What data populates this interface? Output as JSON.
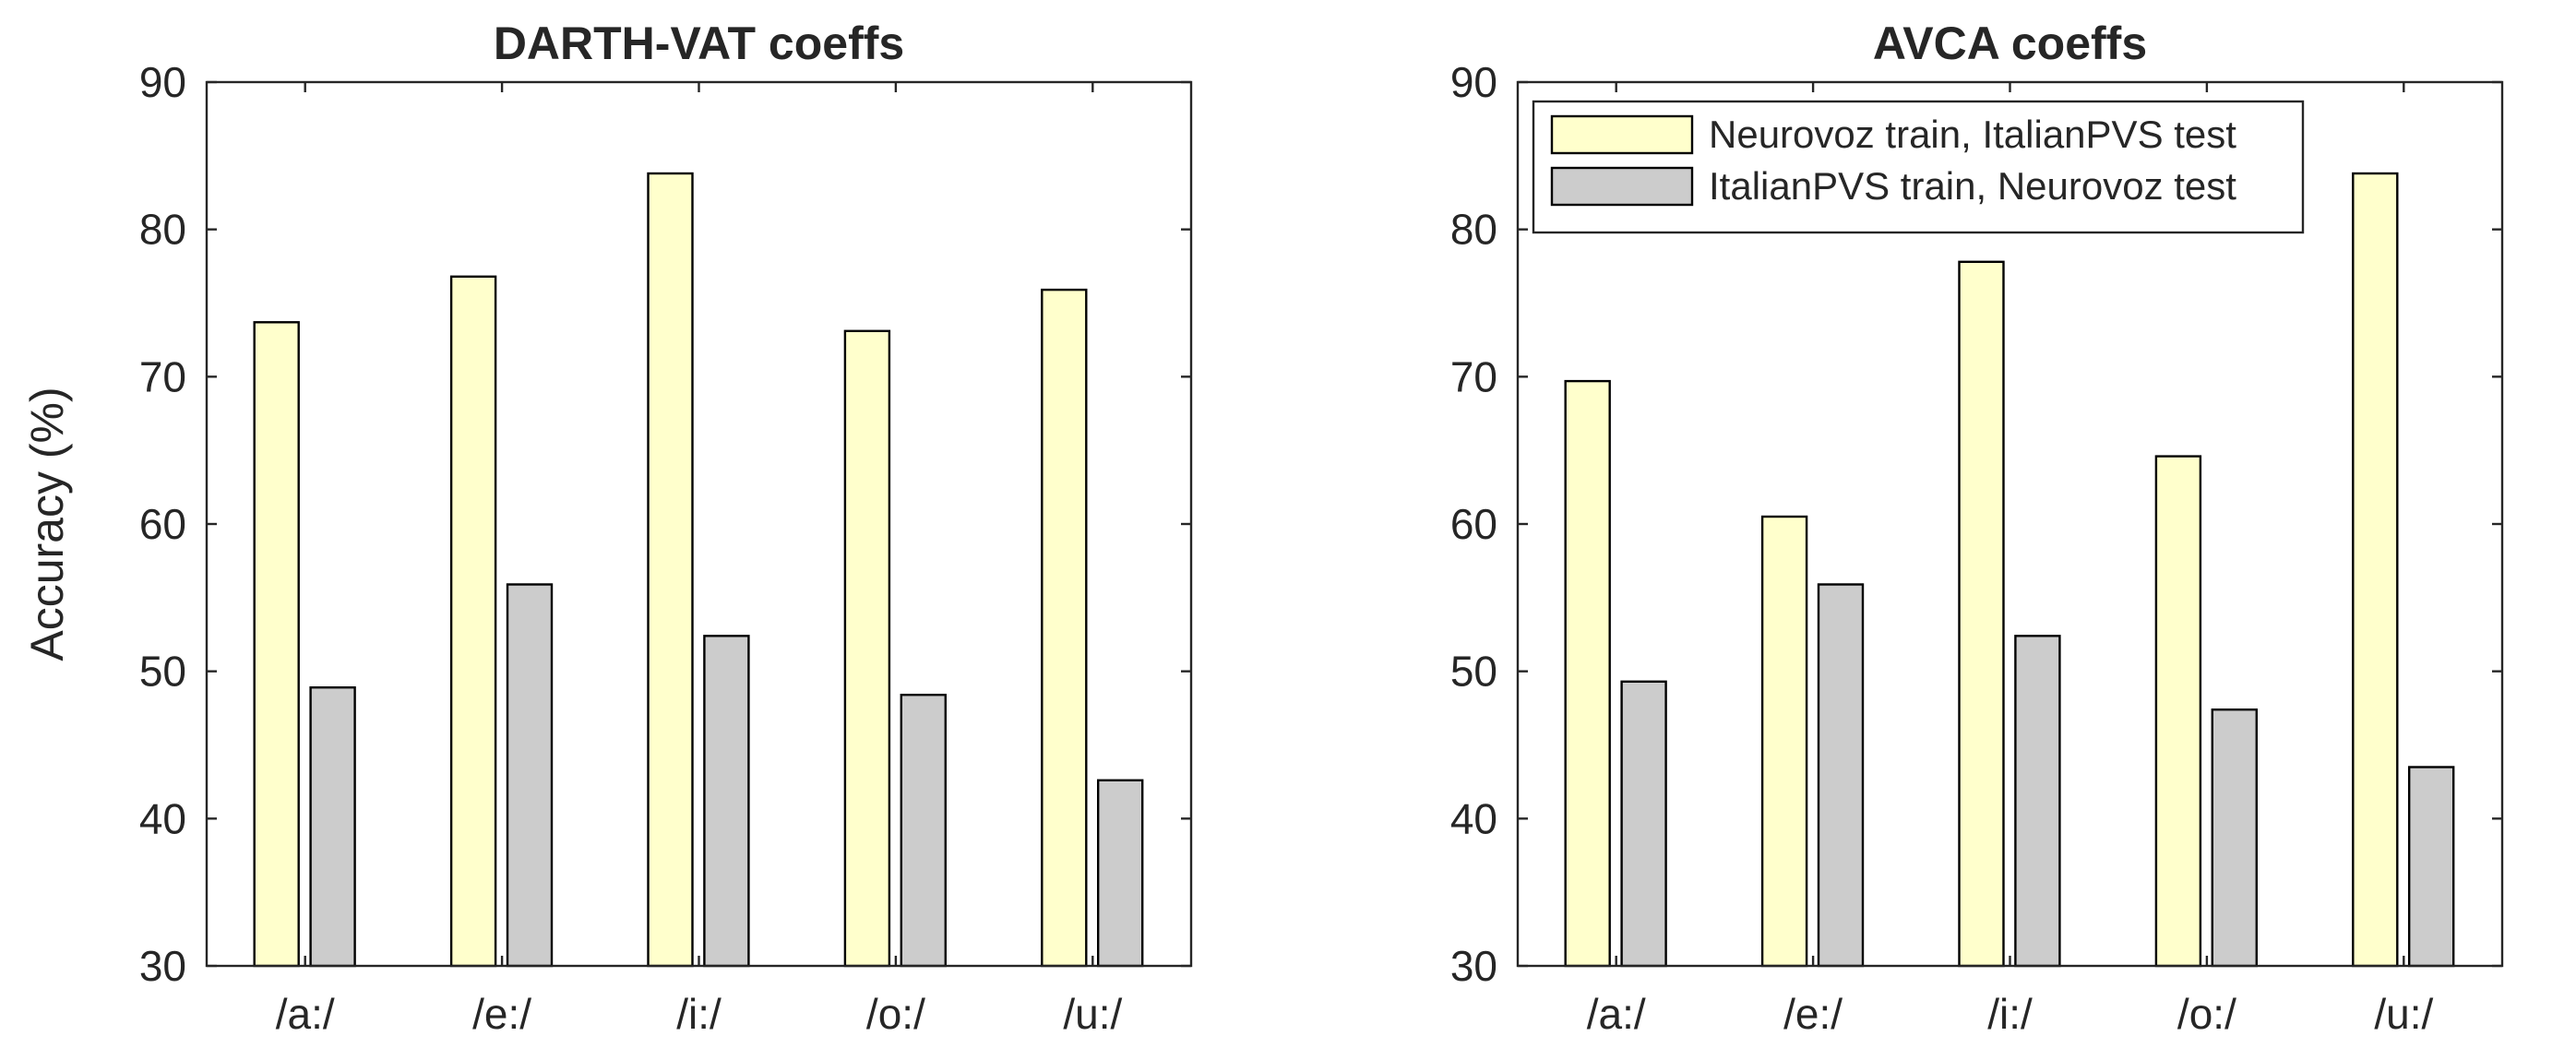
{
  "chart_data": [
    {
      "type": "bar",
      "title": "DARTH-VAT coeffs",
      "xlabel": "",
      "ylabel": "Accuracy (%)",
      "categories": [
        "/a:/",
        "/e:/",
        "/i:/",
        "/o:/",
        "/u:/"
      ],
      "yticks": [
        "30",
        "40",
        "50",
        "60",
        "70",
        "80",
        "90"
      ],
      "ylim": [
        30,
        90
      ],
      "grid": false,
      "legend": null,
      "series": [
        {
          "values": [
            73.7,
            76.8,
            83.8,
            73.1,
            75.9
          ],
          "color": "#ffffcc"
        },
        {
          "values": [
            48.9,
            55.9,
            52.4,
            48.4,
            42.6
          ],
          "color": "#cccccc"
        }
      ]
    },
    {
      "type": "bar",
      "title": "AVCA coeffs",
      "xlabel": "",
      "ylabel": "",
      "categories": [
        "/a:/",
        "/e:/",
        "/i:/",
        "/o:/",
        "/u:/"
      ],
      "yticks": [
        "30",
        "40",
        "50",
        "60",
        "70",
        "80",
        "90"
      ],
      "ylim": [
        30,
        90
      ],
      "grid": false,
      "legend": "top-left",
      "series": [
        {
          "name": "Neurovoz train, ItalianPVS test",
          "values": [
            69.7,
            60.5,
            77.8,
            64.6,
            83.8
          ],
          "color": "#ffffcc"
        },
        {
          "name": "ItalianPVS train, Neurovoz test",
          "values": [
            49.3,
            55.9,
            52.4,
            47.4,
            43.5
          ],
          "color": "#cccccc"
        }
      ]
    }
  ]
}
